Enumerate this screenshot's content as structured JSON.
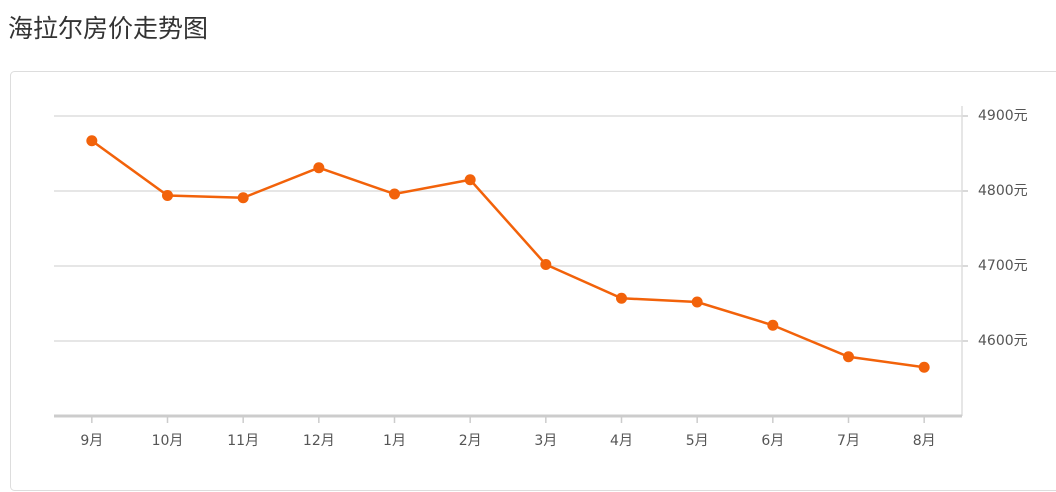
{
  "chart_data": {
    "type": "line",
    "title": "海拉尔房价走势图",
    "categories": [
      "9月",
      "10月",
      "11月",
      "12月",
      "1月",
      "2月",
      "3月",
      "4月",
      "5月",
      "6月",
      "7月",
      "8月"
    ],
    "series": [
      {
        "color": "#f2620a",
        "values": [
          4867,
          4794,
          4791,
          4831,
          4796,
          4815,
          4702,
          4657,
          4652,
          4621,
          4579,
          4565
        ]
      }
    ],
    "ylim": [
      4500,
      4900
    ],
    "yticks": [
      {
        "value": 4600,
        "label": "4600元"
      },
      {
        "value": 4700,
        "label": "4700元"
      },
      {
        "value": 4800,
        "label": "4800元"
      },
      {
        "value": 4900,
        "label": "4900元"
      }
    ],
    "grid": true
  }
}
